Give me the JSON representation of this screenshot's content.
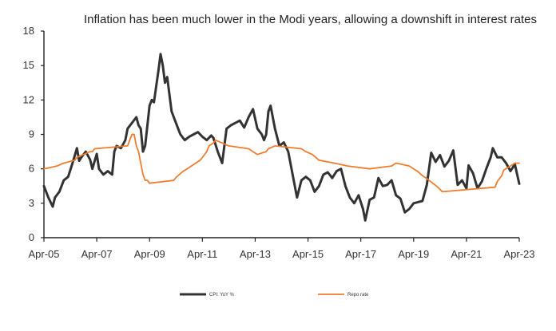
{
  "chart_data": {
    "type": "line",
    "title": "Inflation  has been much lower in the Modi years, allowing a downshift  in interest rates",
    "xlabel": "",
    "ylabel": "",
    "ylim": [
      0,
      18
    ],
    "yticks": [
      0,
      3,
      6,
      9,
      12,
      15,
      18
    ],
    "x_ticks": [
      "Apr-05",
      "Apr-07",
      "Apr-09",
      "Apr-11",
      "Apr-13",
      "Apr-15",
      "Apr-17",
      "Apr-19",
      "Apr-21",
      "Apr-23"
    ],
    "x_range": [
      "Apr-05",
      "Apr-23"
    ],
    "grid": false,
    "legend_position": "bottom",
    "series": [
      {
        "name": "CPI: YoY %",
        "color": "#333333",
        "x": [
          "2005-04",
          "2005-06",
          "2005-08",
          "2005-09",
          "2005-11",
          "2006-01",
          "2006-03",
          "2006-05",
          "2006-07",
          "2006-08",
          "2006-09",
          "2006-11",
          "2007-01",
          "2007-02",
          "2007-04",
          "2007-05",
          "2007-07",
          "2007-09",
          "2007-11",
          "2007-12",
          "2008-01",
          "2008-03",
          "2008-05",
          "2008-06",
          "2008-08",
          "2008-10",
          "2008-11",
          "2008-12",
          "2009-01",
          "2009-02",
          "2009-04",
          "2009-05",
          "2009-06",
          "2009-08",
          "2009-09",
          "2009-10",
          "2009-11",
          "2009-12",
          "2010-02",
          "2010-03",
          "2010-05",
          "2010-06",
          "2010-08",
          "2010-10",
          "2010-12",
          "2011-02",
          "2011-04",
          "2011-06",
          "2011-08",
          "2011-09",
          "2011-11",
          "2012-01",
          "2012-03",
          "2012-05",
          "2012-07",
          "2012-09",
          "2012-11",
          "2013-01",
          "2013-03",
          "2013-05",
          "2013-07",
          "2013-08",
          "2013-09",
          "2013-10",
          "2013-11",
          "2014-01",
          "2014-03",
          "2014-05",
          "2014-07",
          "2014-09",
          "2014-11",
          "2015-01",
          "2015-03",
          "2015-05",
          "2015-07",
          "2015-09",
          "2015-11",
          "2016-01",
          "2016-03",
          "2016-05",
          "2016-07",
          "2016-09",
          "2016-11",
          "2017-01",
          "2017-03",
          "2017-05",
          "2017-06",
          "2017-08",
          "2017-10",
          "2017-12",
          "2018-02",
          "2018-04",
          "2018-06",
          "2018-08",
          "2018-10",
          "2018-12",
          "2019-02",
          "2019-04",
          "2019-06",
          "2019-08",
          "2019-10",
          "2019-12",
          "2020-02",
          "2020-04",
          "2020-06",
          "2020-08",
          "2020-10",
          "2020-12",
          "2021-02",
          "2021-04",
          "2021-05",
          "2021-07",
          "2021-09",
          "2021-11",
          "2022-01",
          "2022-03",
          "2022-04",
          "2022-06",
          "2022-08",
          "2022-10",
          "2022-12",
          "2023-02",
          "2023-04"
        ],
        "values": [
          4.5,
          3.5,
          2.7,
          3.5,
          4.0,
          5.0,
          5.3,
          6.5,
          7.8,
          6.7,
          7.0,
          7.5,
          6.8,
          6.0,
          7.3,
          6.0,
          5.5,
          5.8,
          5.5,
          7.5,
          8.0,
          7.8,
          8.5,
          9.5,
          10.0,
          10.5,
          9.8,
          9.5,
          7.5,
          8.0,
          11.5,
          12.0,
          11.8,
          14.5,
          16.0,
          15.0,
          13.5,
          14.0,
          11.0,
          10.5,
          9.5,
          9.0,
          8.5,
          8.8,
          9.0,
          9.2,
          8.8,
          8.5,
          8.9,
          8.7,
          7.5,
          6.5,
          9.5,
          9.8,
          10.0,
          10.2,
          9.6,
          10.5,
          11.2,
          9.5,
          9.0,
          8.5,
          9.0,
          11.0,
          11.5,
          9.5,
          8.0,
          8.3,
          7.5,
          5.5,
          3.5,
          5.0,
          5.3,
          5.0,
          4.0,
          4.5,
          5.5,
          5.7,
          5.2,
          5.8,
          6.0,
          4.5,
          3.5,
          3.0,
          3.7,
          2.5,
          1.5,
          3.3,
          3.5,
          5.2,
          4.5,
          4.6,
          5.0,
          3.7,
          3.4,
          2.2,
          2.5,
          3.0,
          3.1,
          3.2,
          4.6,
          7.4,
          6.6,
          7.2,
          6.2,
          6.7,
          7.6,
          4.6,
          5.0,
          4.3,
          6.3,
          5.6,
          4.3,
          4.9,
          6.0,
          7.0,
          7.8,
          7.0,
          7.0,
          6.5,
          5.8,
          6.4,
          4.7
        ]
      },
      {
        "name": "Repo rate",
        "color": "#f07c2c",
        "x": [
          "2005-04",
          "2005-10",
          "2006-01",
          "2006-06",
          "2006-07",
          "2006-10",
          "2007-01",
          "2007-02",
          "2007-03",
          "2008-06",
          "2008-07",
          "2008-08",
          "2008-09",
          "2008-10",
          "2008-11",
          "2008-12",
          "2009-01",
          "2009-02",
          "2009-03",
          "2009-04",
          "2010-03",
          "2010-04",
          "2010-07",
          "2010-09",
          "2010-11",
          "2011-01",
          "2011-03",
          "2011-05",
          "2011-06",
          "2011-07",
          "2011-09",
          "2011-10",
          "2012-04",
          "2013-01",
          "2013-03",
          "2013-05",
          "2013-09",
          "2013-10",
          "2014-01",
          "2015-01",
          "2015-03",
          "2015-06",
          "2015-09",
          "2016-04",
          "2016-10",
          "2017-08",
          "2018-06",
          "2018-08",
          "2019-02",
          "2019-04",
          "2019-06",
          "2019-08",
          "2019-10",
          "2020-03",
          "2020-05",
          "2022-05",
          "2022-06",
          "2022-08",
          "2022-09",
          "2022-12",
          "2023-02",
          "2023-04"
        ],
        "values": [
          6.0,
          6.25,
          6.5,
          6.75,
          7.0,
          7.25,
          7.5,
          7.5,
          7.75,
          8.0,
          8.5,
          9.0,
          9.0,
          8.0,
          7.5,
          6.5,
          5.5,
          5.0,
          5.0,
          4.75,
          5.0,
          5.25,
          5.75,
          6.0,
          6.25,
          6.5,
          6.75,
          7.25,
          7.5,
          8.0,
          8.25,
          8.5,
          8.0,
          7.75,
          7.5,
          7.25,
          7.5,
          7.75,
          8.0,
          7.75,
          7.5,
          7.25,
          6.75,
          6.5,
          6.25,
          6.0,
          6.25,
          6.5,
          6.25,
          6.0,
          5.75,
          5.4,
          5.15,
          4.4,
          4.0,
          4.4,
          4.9,
          5.4,
          5.9,
          6.25,
          6.5,
          6.5
        ]
      }
    ]
  }
}
